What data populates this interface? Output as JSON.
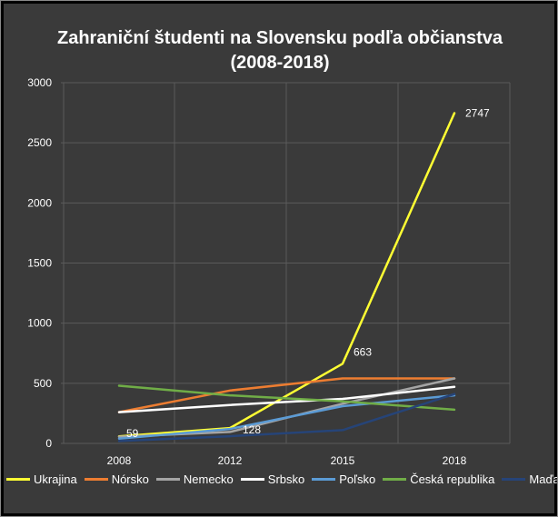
{
  "chart_data": {
    "type": "line",
    "title": "Zahraniční študenti na Slovensku podľa občianstva",
    "subtitle": "(2008-2018)",
    "x": [
      "2008",
      "2012",
      "2015",
      "2018"
    ],
    "ylim": [
      0,
      3000
    ],
    "yticks": [
      "0",
      "500",
      "1000",
      "1500",
      "2000",
      "2500",
      "3000"
    ],
    "grid": true,
    "legend": "bottom",
    "series": [
      {
        "name": "Ukrajina",
        "color": "#ffff33",
        "values": [
          59,
          128,
          663,
          2747
        ]
      },
      {
        "name": "Nórsko",
        "color": "#ed7d31",
        "values": [
          260,
          440,
          540,
          540
        ]
      },
      {
        "name": "Nemecko",
        "color": "#a5a5a5",
        "values": [
          55,
          95,
          330,
          540
        ]
      },
      {
        "name": "Srbsko",
        "color": "#ffffff",
        "values": [
          260,
          320,
          370,
          470
        ]
      },
      {
        "name": "Poľsko",
        "color": "#5b9bd5",
        "values": [
          40,
          120,
          310,
          400
        ]
      },
      {
        "name": "Česká republika",
        "color": "#70ad47",
        "values": [
          480,
          400,
          350,
          280
        ]
      },
      {
        "name": "Maďarsko",
        "color": "#264478",
        "values": [
          20,
          60,
          110,
          410
        ]
      }
    ],
    "data_labels": [
      {
        "series": "Ukrajina",
        "x": "2008",
        "text": "59"
      },
      {
        "series": "Ukrajina",
        "x": "2012",
        "text": "128"
      },
      {
        "series": "Ukrajina",
        "x": "2015",
        "text": "663"
      },
      {
        "series": "Ukrajina",
        "x": "2018",
        "text": "2747"
      }
    ]
  }
}
